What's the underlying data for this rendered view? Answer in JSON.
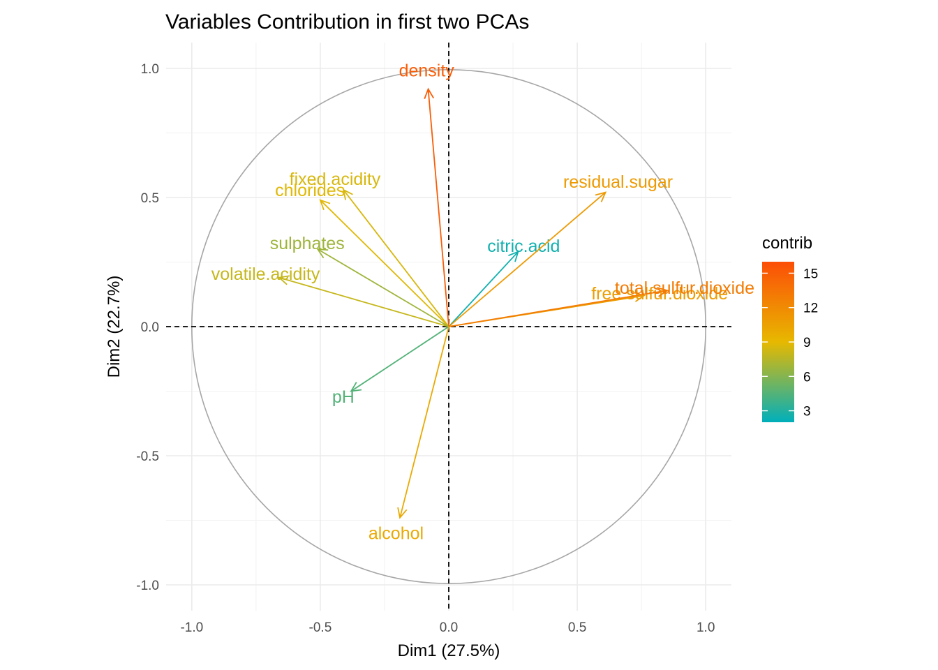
{
  "chart_data": {
    "type": "scatter",
    "subtype": "pca-variable-correlation-circle",
    "title": "Variables Contribution in first two PCAs",
    "xlabel": "Dim1 (27.5%)",
    "ylabel": "Dim2 (22.7%)",
    "xlim": [
      -1.1,
      1.1
    ],
    "ylim": [
      -1.1,
      1.1
    ],
    "x_ticks": [
      "-1.0",
      "-0.5",
      "0.0",
      "0.5",
      "1.0"
    ],
    "y_ticks": [
      "-1.0",
      "-0.5",
      "0.0",
      "0.5",
      "1.0"
    ],
    "grid": true,
    "unit_circle": true,
    "reference_lines": [
      "x=0",
      "y=0"
    ],
    "color_scale": {
      "title": "contrib",
      "min": 2,
      "max": 16,
      "ticks": [
        "3",
        "6",
        "9",
        "12",
        "15"
      ],
      "tick_values": [
        3,
        6,
        9,
        12,
        15
      ],
      "low_color": "#00AFBB",
      "mid_color": "#E7B800",
      "high_color": "#FC4E07",
      "mid_value": 9,
      "placement": "right"
    },
    "variables": [
      {
        "name": "fixed.acidity",
        "x": -0.41,
        "y": 0.53,
        "contrib": 8.5
      },
      {
        "name": "volatile.acidity",
        "x": -0.66,
        "y": 0.19,
        "contrib": 8.0
      },
      {
        "name": "citric.acid",
        "x": 0.27,
        "y": 0.29,
        "contrib": 2.5
      },
      {
        "name": "residual.sugar",
        "x": 0.61,
        "y": 0.52,
        "contrib": 11.0
      },
      {
        "name": "chlorides",
        "x": -0.5,
        "y": 0.49,
        "contrib": 8.8
      },
      {
        "name": "free.sulfur.dioxide",
        "x": 0.76,
        "y": 0.12,
        "contrib": 10.8
      },
      {
        "name": "total.sulfur.dioxide",
        "x": 0.85,
        "y": 0.14,
        "contrib": 13.0
      },
      {
        "name": "density",
        "x": -0.08,
        "y": 0.92,
        "contrib": 15.0
      },
      {
        "name": "pH",
        "x": -0.38,
        "y": -0.25,
        "contrib": 4.5
      },
      {
        "name": "sulphates",
        "x": -0.51,
        "y": 0.3,
        "contrib": 6.8
      },
      {
        "name": "alcohol",
        "x": -0.19,
        "y": -0.74,
        "contrib": 10.0
      }
    ]
  }
}
